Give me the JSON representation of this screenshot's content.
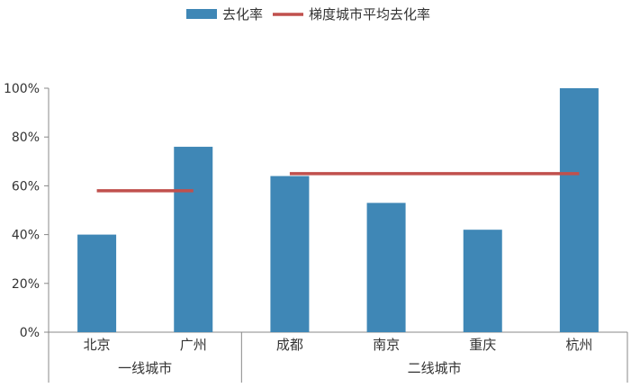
{
  "chart_data": {
    "type": "bar",
    "categories": [
      "北京",
      "广州",
      "成都",
      "南京",
      "重庆",
      "杭州"
    ],
    "category_groups": [
      {
        "label": "一线城市",
        "categories": [
          "北京",
          "广州"
        ]
      },
      {
        "label": "二线城市",
        "categories": [
          "成都",
          "南京",
          "重庆",
          "杭州"
        ]
      }
    ],
    "series": [
      {
        "name": "去化率",
        "kind": "bar",
        "color": "#3F87B6",
        "values": [
          0.4,
          0.76,
          0.64,
          0.53,
          0.42,
          1.0
        ]
      },
      {
        "name": "梯度城市平均去化率",
        "kind": "line",
        "color": "#C0504D",
        "values": [
          0.58,
          0.58,
          0.65,
          0.65,
          0.65,
          0.65
        ]
      }
    ],
    "ylim": [
      0,
      1
    ],
    "y_ticks": [
      "0%",
      "20%",
      "40%",
      "60%",
      "80%",
      "100%"
    ],
    "grid": false,
    "legend_position": "top"
  }
}
